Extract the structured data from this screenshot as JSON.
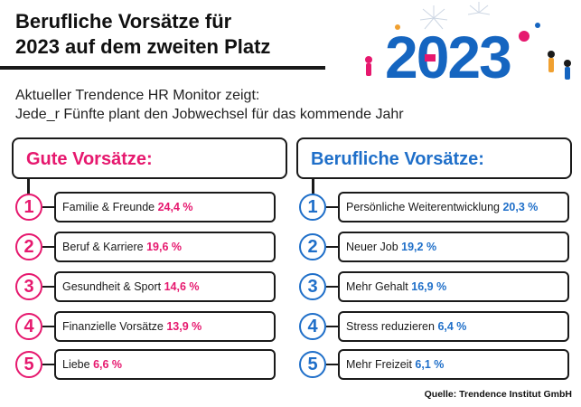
{
  "header": {
    "title_line1": "Berufliche Vorsätze für",
    "title_line2": "2023 auf dem zweiten Platz",
    "subtitle_line1": "Aktueller Trendence HR Monitor zeigt:",
    "subtitle_line2": "Jede_r Fünfte plant den Jobwechsel für das kommende Jahr",
    "year_graphic": "2023"
  },
  "colors": {
    "left_accent": "#e6186e",
    "right_accent": "#1f6fc9",
    "ink": "#1a1a1a",
    "year_blue": "#1565c0"
  },
  "chart_data": [
    {
      "type": "table",
      "title": "Gute Vorsätze:",
      "categories": [
        "Familie & Freunde",
        "Beruf & Karriere",
        "Gesundheit & Sport",
        "Finanzielle Vorsätze",
        "Liebe"
      ],
      "values": [
        24.4,
        19.6,
        14.6,
        13.9,
        6.6
      ],
      "value_labels": [
        "24,4 %",
        "19,6 %",
        "14,6 %",
        "13,9 %",
        "6,6 %"
      ],
      "ranks": [
        "1",
        "2",
        "3",
        "4",
        "5"
      ]
    },
    {
      "type": "table",
      "title": "Berufliche Vorsätze:",
      "categories": [
        "Persönliche Weiterentwicklung",
        "Neuer Job",
        "Mehr Gehalt",
        "Stress reduzieren",
        "Mehr Freizeit"
      ],
      "values": [
        20.3,
        19.2,
        16.9,
        6.4,
        6.1
      ],
      "value_labels": [
        "20,3 %",
        "19,2 %",
        "16,9 %",
        "6,4 %",
        "6,1 %"
      ],
      "ranks": [
        "1",
        "2",
        "3",
        "4",
        "5"
      ]
    }
  ],
  "footer": {
    "source": "Quelle: Trendence Institut GmbH"
  }
}
